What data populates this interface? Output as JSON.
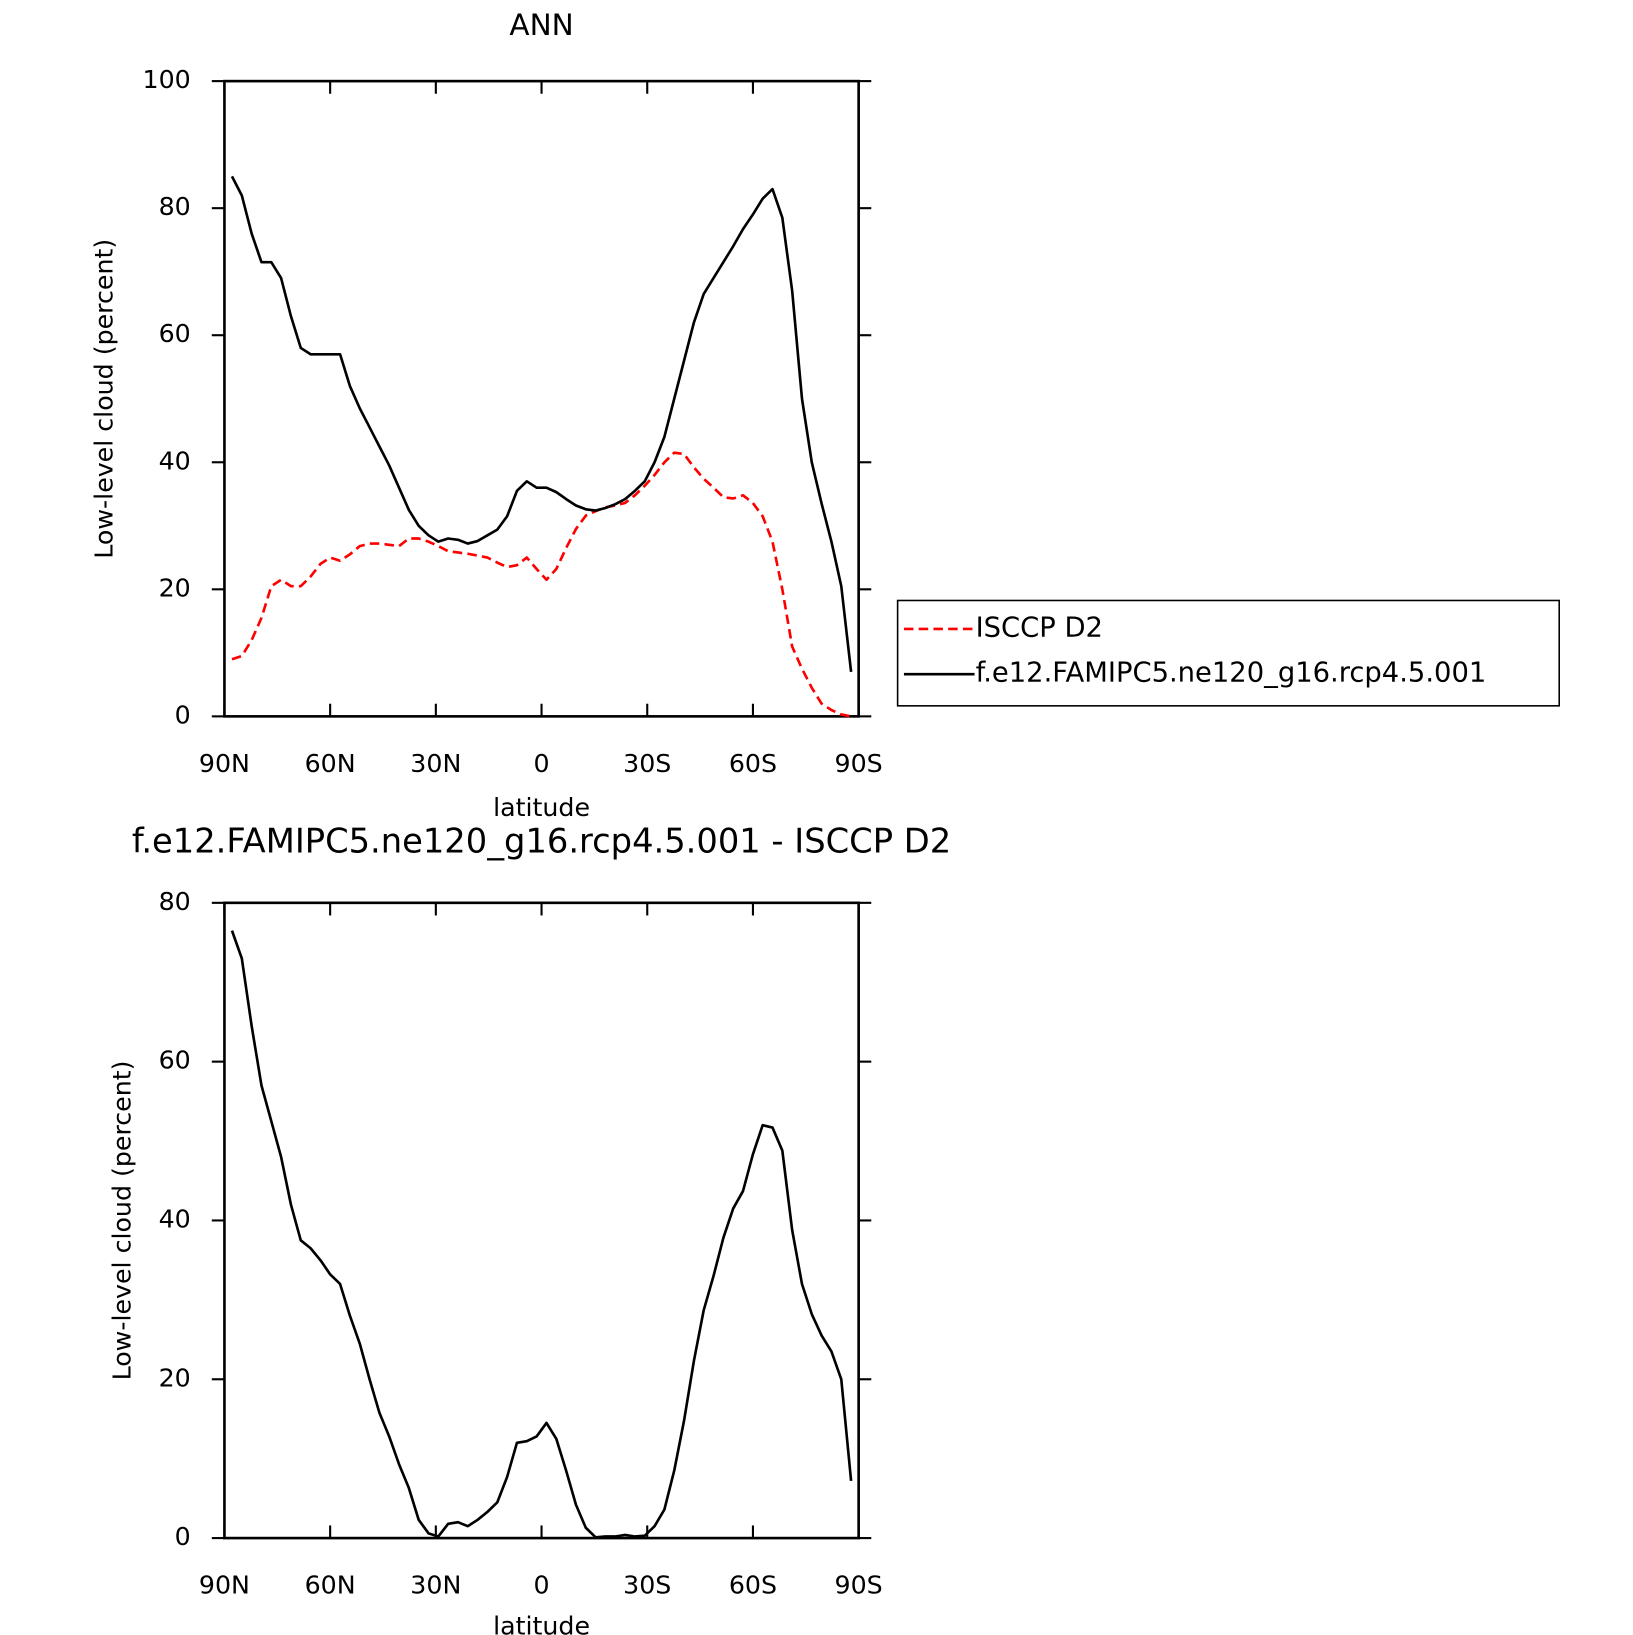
{
  "chart_data": [
    {
      "type": "line",
      "title": "ANN",
      "xlabel": "latitude",
      "ylabel": "Low-level cloud (percent)",
      "x": [
        87.86,
        85.07,
        82.28,
        79.49,
        76.7,
        73.92,
        71.13,
        68.34,
        65.55,
        62.76,
        59.97,
        57.18,
        54.39,
        51.6,
        48.81,
        46.03,
        43.24,
        40.45,
        37.66,
        34.87,
        32.08,
        29.29,
        26.5,
        23.71,
        20.93,
        18.14,
        15.35,
        12.56,
        9.77,
        6.98,
        4.19,
        1.4,
        -1.4,
        -4.19,
        -6.98,
        -9.77,
        -12.56,
        -15.35,
        -18.14,
        -20.93,
        -23.71,
        -26.5,
        -29.29,
        -32.08,
        -34.87,
        -37.66,
        -40.45,
        -43.24,
        -46.03,
        -48.81,
        -51.6,
        -54.39,
        -57.18,
        -59.97,
        -62.76,
        -65.55,
        -68.34,
        -71.13,
        -73.92,
        -76.7,
        -79.49,
        -82.28,
        -85.07,
        -87.86
      ],
      "xlim": [
        90,
        -90
      ],
      "xticks": [
        {
          "value": 90,
          "label": "90N"
        },
        {
          "value": 60,
          "label": "60N"
        },
        {
          "value": 30,
          "label": "30N"
        },
        0,
        {
          "value": -30,
          "label": "30S"
        },
        {
          "value": -60,
          "label": "60S"
        },
        {
          "value": -90,
          "label": "90S"
        }
      ],
      "ylim": [
        0,
        100
      ],
      "yticks": [
        0,
        20,
        40,
        60,
        80,
        100
      ],
      "legend": "right",
      "series": [
        {
          "name": "ISCCP D2",
          "color": "#ff0000",
          "dash": true,
          "values": [
            9,
            9.5,
            12,
            15.5,
            20.5,
            21.5,
            20.5,
            20.5,
            22,
            24,
            25,
            24.5,
            25.5,
            26.8,
            27.2,
            27.2,
            27,
            26.8,
            28,
            28,
            27.5,
            26.8,
            26,
            25.8,
            25.6,
            25.3,
            25,
            24.2,
            23.5,
            23.8,
            25,
            23.2,
            21.5,
            23.2,
            26.5,
            29.5,
            31.6,
            32.3,
            32.9,
            33.2,
            33.6,
            34.8,
            36.3,
            38,
            40,
            41.5,
            41.3,
            39.2,
            37.4,
            36,
            34.5,
            34.3,
            34.8,
            33.6,
            31.5,
            27.5,
            20,
            11,
            7.5,
            4.5,
            2,
            1,
            0.3,
            0
          ]
        },
        {
          "name": "f.e12.FAMIPC5.ne120_g16.rcp4.5.001",
          "color": "#000000",
          "dash": false,
          "values": [
            85,
            82,
            76,
            71.5,
            71.5,
            69,
            63,
            58,
            57,
            57,
            57,
            57,
            52,
            48.5,
            45.5,
            42.5,
            39.5,
            36,
            32.5,
            30,
            28.5,
            27.5,
            28,
            27.8,
            27.2,
            27.6,
            28.5,
            29.4,
            31.5,
            35.5,
            37,
            36,
            36,
            35.3,
            34.2,
            33.2,
            32.6,
            32.4,
            32.8,
            33.4,
            34.2,
            35.5,
            37,
            40,
            44,
            50,
            56,
            62,
            66.5,
            69,
            71.5,
            74,
            76.7,
            79,
            81.5,
            83,
            78.5,
            67,
            50,
            40,
            33.5,
            27.5,
            20.5,
            7
          ]
        }
      ]
    },
    {
      "type": "line",
      "title": "f.e12.FAMIPC5.ne120_g16.rcp4.5.001 - ISCCP D2",
      "xlabel": "latitude",
      "ylabel": "Low-level cloud (percent)",
      "x": [
        87.86,
        85.07,
        82.28,
        79.49,
        76.7,
        73.92,
        71.13,
        68.34,
        65.55,
        62.76,
        59.97,
        57.18,
        54.39,
        51.6,
        48.81,
        46.03,
        43.24,
        40.45,
        37.66,
        34.87,
        32.08,
        29.29,
        26.5,
        23.71,
        20.93,
        18.14,
        15.35,
        12.56,
        9.77,
        6.98,
        4.19,
        1.4,
        -1.4,
        -4.19,
        -6.98,
        -9.77,
        -12.56,
        -15.35,
        -18.14,
        -20.93,
        -23.71,
        -26.5,
        -29.29,
        -32.08,
        -34.87,
        -37.66,
        -40.45,
        -43.24,
        -46.03,
        -48.81,
        -51.6,
        -54.39,
        -57.18,
        -59.97,
        -62.76,
        -65.55,
        -68.34,
        -71.13,
        -73.92,
        -76.7,
        -79.49,
        -82.28,
        -85.07,
        -87.86
      ],
      "xlim": [
        90,
        -90
      ],
      "xticks": [
        {
          "value": 90,
          "label": "90N"
        },
        {
          "value": 60,
          "label": "60N"
        },
        {
          "value": 30,
          "label": "30N"
        },
        0,
        {
          "value": -30,
          "label": "30S"
        },
        {
          "value": -60,
          "label": "60S"
        },
        {
          "value": -90,
          "label": "90S"
        }
      ],
      "ylim": [
        0,
        80
      ],
      "yticks": [
        0,
        20,
        40,
        60,
        80
      ],
      "series": [
        {
          "color": "#000000",
          "dash": false,
          "values": [
            76.5,
            73,
            64.5,
            57,
            52.5,
            48,
            42,
            37.5,
            36.5,
            35,
            33.2,
            32,
            28,
            24.5,
            20,
            15.8,
            12.8,
            9.3,
            6.3,
            2.3,
            0.6,
            0.2,
            1.8,
            2,
            1.5,
            2.3,
            3.3,
            4.5,
            7.7,
            12,
            12.2,
            12.8,
            14.5,
            12.5,
            8.5,
            4.2,
            1.3,
            0.1,
            0.2,
            0.2,
            0.4,
            0.2,
            0.3,
            1.5,
            3.6,
            8.5,
            14.8,
            22.3,
            28.7,
            33,
            37.8,
            41.5,
            43.7,
            48.3,
            52,
            51.7,
            48.8,
            38.8,
            32,
            28.2,
            25.5,
            23.5,
            20,
            7.2
          ]
        }
      ]
    }
  ]
}
